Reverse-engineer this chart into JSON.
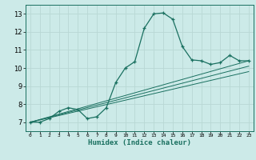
{
  "xlabel": "Humidex (Indice chaleur)",
  "ylabel": "",
  "bg_color": "#cceae8",
  "grid_color": "#b8d8d4",
  "line_color": "#1a7060",
  "xlim": [
    -0.5,
    23.5
  ],
  "ylim": [
    6.5,
    13.5
  ],
  "xticks": [
    0,
    1,
    2,
    3,
    4,
    5,
    6,
    7,
    8,
    9,
    10,
    11,
    12,
    13,
    14,
    15,
    16,
    17,
    18,
    19,
    20,
    21,
    22,
    23
  ],
  "yticks": [
    7,
    8,
    9,
    10,
    11,
    12,
    13
  ],
  "main_curve_x": [
    0,
    1,
    2,
    3,
    4,
    5,
    6,
    7,
    8,
    9,
    10,
    11,
    12,
    13,
    14,
    15,
    16,
    17,
    18,
    19,
    20,
    21,
    22,
    23
  ],
  "main_curve_y": [
    7.0,
    7.0,
    7.2,
    7.6,
    7.8,
    7.7,
    7.2,
    7.3,
    7.8,
    9.2,
    10.0,
    10.35,
    12.2,
    13.0,
    13.05,
    12.7,
    11.2,
    10.45,
    10.4,
    10.2,
    10.3,
    10.7,
    10.4,
    10.4
  ],
  "line1_x": [
    0,
    23
  ],
  "line1_y": [
    7.0,
    10.4
  ],
  "line2_x": [
    0,
    23
  ],
  "line2_y": [
    7.0,
    10.1
  ],
  "line3_x": [
    0,
    23
  ],
  "line3_y": [
    7.0,
    9.8
  ]
}
